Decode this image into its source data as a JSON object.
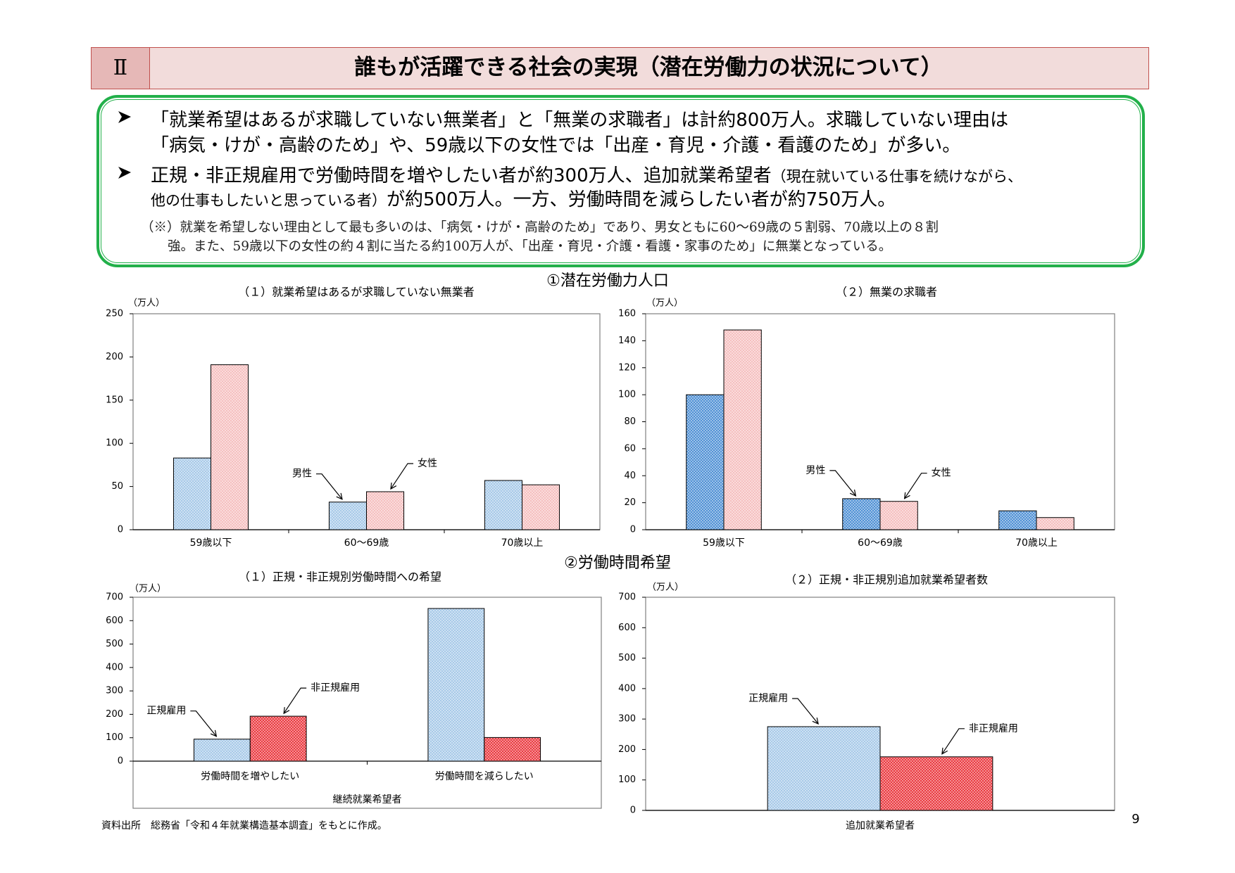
{
  "header": {
    "number": "Ⅱ",
    "title": "誰もが活躍できる社会の実現（潜在労働力の状況について）"
  },
  "bullets": [
    {
      "lines": [
        [
          "「就業希望はあるが求職していない無業者」と「無業の求職者」は計約800万人。求職していない理由は"
        ],
        [
          "「病気・けが・高齢のため」や、59歳以下の女性では「出産・育児・介護・看護のため」が多い。"
        ]
      ]
    },
    {
      "lines": [
        [
          "正規・非正規雇用で労働時間を増やしたい者が約300万人、追加就業希望者",
          "（現在就いている仕事を続けながら、"
        ],
        [
          "他の仕事もしたいと思っている者）",
          "が約500万人。一方、労働時間を減らしたい者が約750万人。"
        ]
      ]
    }
  ],
  "note": [
    "（※）就業を希望しない理由として最も多いのは、「病気・けが・高齢のため」であり、男女ともに60～69歳の５割弱、70歳以上の８割",
    "強。また、59歳以下の女性の約４割に当たる約100万人が、「出産・育児・介護・看護・家事のため」に無業となっている。"
  ],
  "sections": [
    "①潜在労働力人口",
    "②労働時間希望"
  ],
  "chart_data": [
    {
      "type": "bar",
      "title": "（１）就業希望はあるが求職していない無業者",
      "y_unit": "（万人）",
      "categories": [
        "59歳以下",
        "60～69歳",
        "70歳以上"
      ],
      "series": [
        {
          "name": "男性",
          "color": "#9dc3e6",
          "values": [
            83,
            32,
            57
          ]
        },
        {
          "name": "女性",
          "color": "#f4b8b8",
          "values": [
            191,
            44,
            52
          ]
        }
      ],
      "ylim": [
        0,
        250
      ],
      "yticks": [
        0,
        50,
        100,
        150,
        200,
        250
      ]
    },
    {
      "type": "bar",
      "title": "（２）無業の求職者",
      "y_unit": "（万人）",
      "categories": [
        "59歳以下",
        "60～69歳",
        "70歳以上"
      ],
      "series": [
        {
          "name": "男性",
          "color": "#3d85d0",
          "values": [
            100,
            23,
            14
          ]
        },
        {
          "name": "女性",
          "color": "#f4b8b8",
          "values": [
            148,
            21,
            9
          ]
        }
      ],
      "ylim": [
        0,
        160
      ],
      "yticks": [
        0,
        20,
        40,
        60,
        80,
        100,
        120,
        140,
        160
      ]
    },
    {
      "type": "bar",
      "title": "（１）正規・非正規別労働時間への希望",
      "y_unit": "（万人）",
      "categories": [
        "労働時間を増やしたい",
        "労働時間を減らしたい"
      ],
      "xlabel": "継続就業希望者",
      "series": [
        {
          "name": "正規雇用",
          "color": "#9dc3e6",
          "values": [
            94,
            652
          ]
        },
        {
          "name": "非正規雇用",
          "color": "#e8242b",
          "values": [
            192,
            101
          ]
        }
      ],
      "ylim": [
        0,
        700
      ],
      "yticks": [
        0,
        100,
        200,
        300,
        400,
        500,
        600,
        700
      ]
    },
    {
      "type": "bar",
      "title": "（２）正規・非正規別追加就業希望者数",
      "y_unit": "（万人）",
      "categories": [
        "追加就業希望者"
      ],
      "series": [
        {
          "name": "正規雇用",
          "color": "#9dc3e6",
          "values": [
            275
          ]
        },
        {
          "name": "非正規雇用",
          "color": "#e8242b",
          "values": [
            176
          ]
        }
      ],
      "ylim": [
        0,
        700
      ],
      "yticks": [
        0,
        100,
        200,
        300,
        400,
        500,
        600,
        700
      ]
    }
  ],
  "source": "資料出所　総務省「令和４年就業構造基本調査」をもとに作成。",
  "page_number": "9"
}
